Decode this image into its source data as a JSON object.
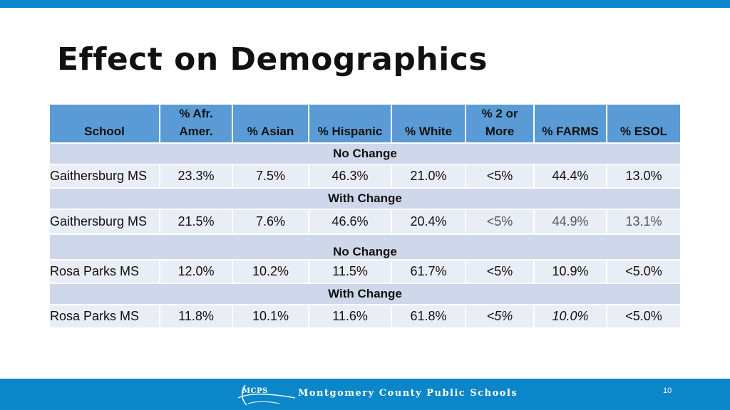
{
  "slide": {
    "title": "Effect on Demographics",
    "page_number": "10"
  },
  "table": {
    "headers": [
      "School",
      "% Afr. Amer.",
      "% Asian",
      "% Hispanic",
      "% White",
      "% 2 or More",
      "% FARMS",
      "% ESOL"
    ],
    "rows": [
      {
        "band": "No Change",
        "school": "Gaithersburg MS",
        "values": [
          "23.3%",
          "7.5%",
          "46.3%",
          "21.0%",
          "<5%",
          "44.4%",
          "13.0%"
        ]
      },
      {
        "band": "With Change",
        "school": "Gaithersburg MS",
        "values": [
          "21.5%",
          "7.6%",
          "46.6%",
          "20.4%",
          "<5%",
          "44.9%",
          "13.1%"
        ]
      },
      {
        "band": "No Change",
        "school": "Rosa Parks MS",
        "values": [
          "12.0%",
          "10.2%",
          "11.5%",
          "61.7%",
          "<5%",
          "10.9%",
          "<5.0%"
        ]
      },
      {
        "band": "With Change",
        "school": "Rosa Parks MS",
        "values": [
          "11.8%",
          "10.1%",
          "11.6%",
          "61.8%",
          "<5%",
          "10.0%",
          "<5.0%"
        ]
      }
    ]
  },
  "footer": {
    "logo_text": "MCPS",
    "organization": "Montgomery County Public Schools"
  },
  "colors": {
    "accent": "#0b86c9",
    "header_fill": "#5b9bd5",
    "band_fill": "#cfd8ea",
    "row_fill": "#e9edf5"
  }
}
